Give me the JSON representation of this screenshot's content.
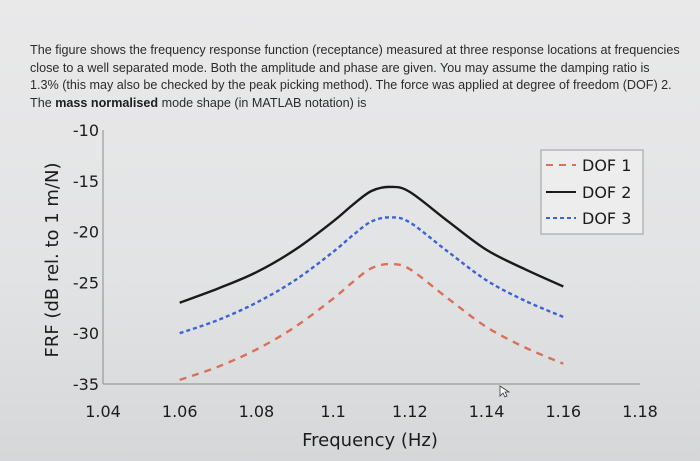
{
  "question": {
    "text_before_bold": "The figure shows the frequency response function (receptance) measured at three response locations at frequencies close to a well separated mode. Both the amplitude and phase are given. You may assume the damping ratio is 1.3% (this may also be checked by the peak picking method). The force was applied at degree of freedom (DOF) 2. The ",
    "bold_text": "mass normalised",
    "text_after_bold": " mode shape (in MATLAB notation) is"
  },
  "colors": {
    "dof1": "#d9705a",
    "dof2": "#1a1a1a",
    "dof3": "#3b62d6",
    "axis": "#9a9a9a"
  },
  "chart_data": {
    "type": "line",
    "xlabel": "Frequency (Hz)",
    "ylabel": "FRF (dB rel. to 1 m/N)",
    "xlim": [
      1.04,
      1.18
    ],
    "ylim": [
      -35,
      -10
    ],
    "xticks": [
      "1.04",
      "1.06",
      "1.08",
      "1.1",
      "1.12",
      "1.14",
      "1.16",
      "1.18"
    ],
    "yticks": [
      "-10",
      "-15",
      "-20",
      "-25",
      "-30",
      "-35"
    ],
    "legend_position": "top-right",
    "x": [
      1.06,
      1.07,
      1.08,
      1.09,
      1.1,
      1.105,
      1.11,
      1.115,
      1.12,
      1.13,
      1.14,
      1.15,
      1.16
    ],
    "series": [
      {
        "name": "DOF 1",
        "style": "dashed",
        "color": "#d9705a",
        "values": [
          -34.6,
          -33.3,
          -31.6,
          -29.4,
          -26.6,
          -25.0,
          -23.6,
          -23.2,
          -23.7,
          -26.6,
          -29.4,
          -31.4,
          -33.0
        ]
      },
      {
        "name": "DOF 2",
        "style": "solid",
        "color": "#1a1a1a",
        "values": [
          -27.0,
          -25.6,
          -24.0,
          -21.8,
          -19.0,
          -17.4,
          -16.0,
          -15.6,
          -16.1,
          -19.0,
          -21.8,
          -23.7,
          -25.4
        ]
      },
      {
        "name": "DOF 3",
        "style": "dashdot",
        "color": "#3b62d6",
        "values": [
          -30.0,
          -28.7,
          -27.0,
          -24.8,
          -22.0,
          -20.4,
          -19.0,
          -18.6,
          -19.1,
          -22.0,
          -24.8,
          -26.8,
          -28.4
        ]
      }
    ]
  }
}
